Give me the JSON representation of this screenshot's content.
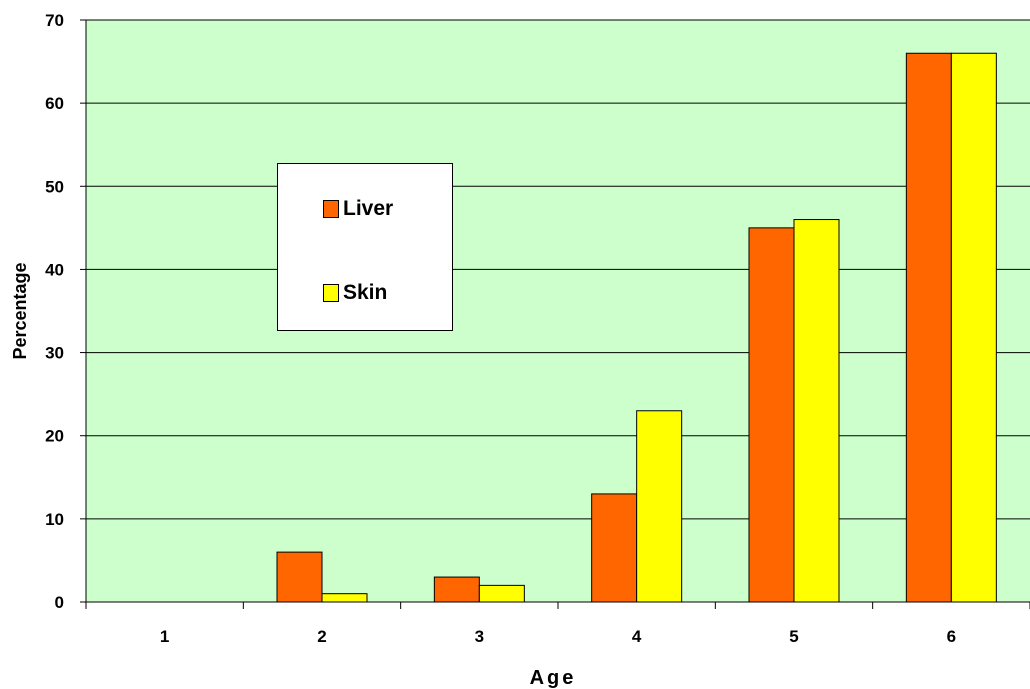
{
  "chart_data": {
    "type": "bar",
    "categories": [
      "1",
      "2",
      "3",
      "4",
      "5",
      "6"
    ],
    "series": [
      {
        "name": "Liver",
        "color": "#ff6600",
        "values": [
          0,
          6,
          3,
          13,
          45,
          66
        ]
      },
      {
        "name": "Skin",
        "color": "#ffff00",
        "values": [
          0,
          1,
          2,
          23,
          46,
          66
        ]
      }
    ],
    "xlabel": "Age",
    "ylabel": "Percentage",
    "ylim": [
      0,
      70
    ],
    "yticks": [
      "0",
      "10",
      "20",
      "30",
      "40",
      "50",
      "60",
      "70"
    ],
    "grid": true,
    "legend_placement": "upper-left inside plot",
    "plot_background": "#ccffcc"
  }
}
